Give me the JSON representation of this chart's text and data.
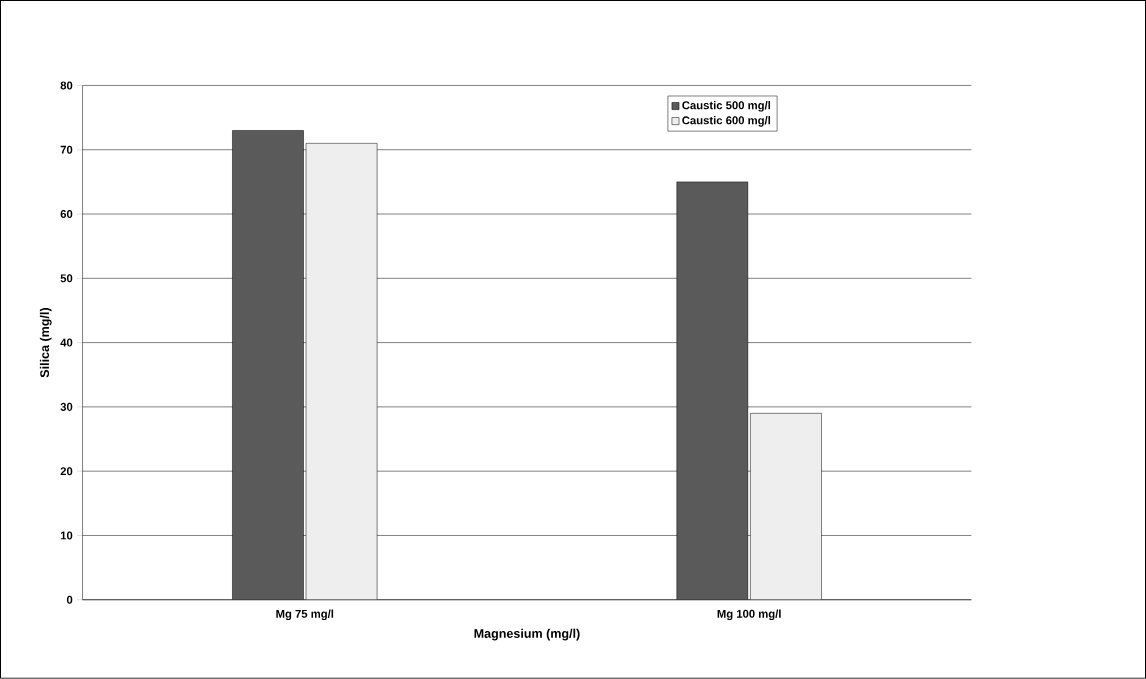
{
  "chart_data": {
    "type": "bar",
    "xlabel": "Magnesium (mg/l)",
    "ylabel": "Silica (mg/l)",
    "categories": [
      "Mg 75 mg/l",
      "Mg 100 mg/l"
    ],
    "series": [
      {
        "name": "Caustic 500 mg/l",
        "color": "#5a5a5a",
        "values": [
          73,
          65
        ]
      },
      {
        "name": "Caustic 600 mg/l",
        "color": "#eeeeee",
        "values": [
          71,
          29
        ]
      }
    ],
    "ylim": [
      0,
      80
    ],
    "yticks": [
      0,
      10,
      20,
      30,
      40,
      50,
      60,
      70,
      80
    ],
    "grid": "y",
    "legend": "top right"
  }
}
